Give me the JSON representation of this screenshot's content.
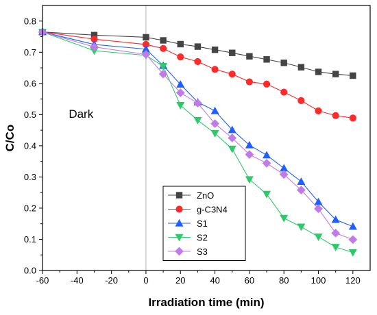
{
  "chart_data": {
    "type": "line",
    "title": "",
    "xlabel": "Irradiation time (min)",
    "ylabel": "C/Co",
    "xlim": [
      -60,
      130
    ],
    "ylim": [
      0.0,
      0.85
    ],
    "xticks": [
      -60,
      -40,
      -20,
      0,
      20,
      40,
      60,
      80,
      100,
      120
    ],
    "xtick_labels": [
      "-60",
      "-40",
      "-20",
      "0",
      "20",
      "40",
      "60",
      "80",
      "100",
      "120"
    ],
    "yticks": [
      0.0,
      0.1,
      0.2,
      0.3,
      0.4,
      0.5,
      0.6,
      0.7,
      0.8
    ],
    "ytick_labels": [
      "0.0",
      "0.1",
      "0.2",
      "0.3",
      "0.4",
      "0.5",
      "0.6",
      "0.7",
      "0.8"
    ],
    "grid": false,
    "legend_position": "bottom-center",
    "vertical_reference_line_x": 0,
    "annotation": {
      "text": "Dark",
      "x": -40,
      "y": 0.49
    },
    "series": [
      {
        "name": "ZnO",
        "color": "#444444",
        "marker": "square",
        "x": [
          -60,
          -30,
          0,
          10,
          20,
          30,
          40,
          50,
          60,
          70,
          80,
          90,
          100,
          110,
          120
        ],
        "y": [
          0.765,
          0.755,
          0.748,
          0.738,
          0.726,
          0.718,
          0.708,
          0.698,
          0.687,
          0.677,
          0.666,
          0.652,
          0.637,
          0.63,
          0.625
        ]
      },
      {
        "name": "g-C3N4",
        "color": "#ff2a2a",
        "marker": "circle",
        "x": [
          -60,
          -30,
          0,
          10,
          20,
          30,
          40,
          50,
          60,
          70,
          80,
          90,
          100,
          110,
          120
        ],
        "y": [
          0.765,
          0.742,
          0.725,
          0.712,
          0.685,
          0.67,
          0.645,
          0.63,
          0.605,
          0.598,
          0.572,
          0.545,
          0.512,
          0.497,
          0.489
        ]
      },
      {
        "name": "S1",
        "color": "#1f5fff",
        "marker": "triangle-up",
        "x": [
          -60,
          -30,
          0,
          10,
          20,
          30,
          40,
          50,
          60,
          70,
          80,
          90,
          100,
          110,
          120
        ],
        "y": [
          0.765,
          0.725,
          0.71,
          0.657,
          0.597,
          0.54,
          0.512,
          0.451,
          0.402,
          0.37,
          0.328,
          0.285,
          0.22,
          0.163,
          0.141
        ]
      },
      {
        "name": "S2",
        "color": "#2ec96a",
        "marker": "triangle-down",
        "x": [
          -60,
          -30,
          0,
          10,
          20,
          30,
          40,
          50,
          60,
          70,
          80,
          90,
          100,
          110,
          120
        ],
        "y": [
          0.765,
          0.705,
          0.69,
          0.655,
          0.53,
          0.482,
          0.44,
          0.39,
          0.292,
          0.245,
          0.168,
          0.14,
          0.108,
          0.075,
          0.058
        ]
      },
      {
        "name": "S3",
        "color": "#c07be8",
        "marker": "diamond",
        "x": [
          -60,
          -30,
          0,
          10,
          20,
          30,
          40,
          50,
          60,
          70,
          80,
          90,
          100,
          110,
          120
        ],
        "y": [
          0.765,
          0.717,
          0.693,
          0.63,
          0.57,
          0.537,
          0.471,
          0.425,
          0.372,
          0.344,
          0.308,
          0.258,
          0.198,
          0.12,
          0.099
        ]
      }
    ]
  }
}
